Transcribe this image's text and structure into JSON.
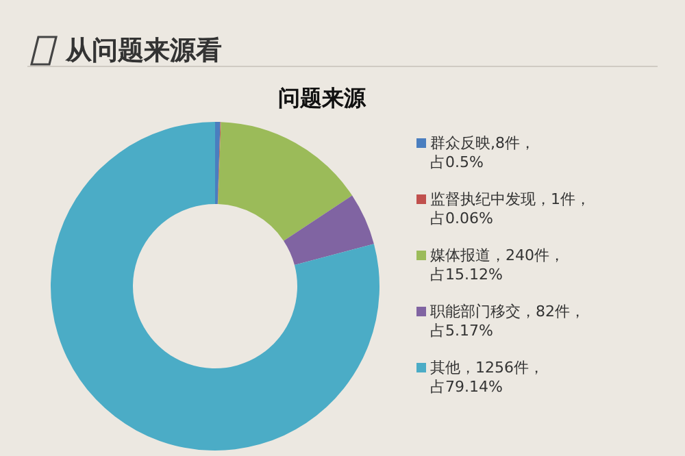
{
  "chart_data": {
    "type": "donut",
    "title": "从问题来源看",
    "subtitle": "问题来源",
    "categories": [
      "群众反映,8件，占0.5%",
      "监督执纪中发现，1件，占0.06%",
      "媒体报道，240件，占15.12%",
      "职能部门移交，82件，占5.17%",
      "其他，1256件，占79.14%"
    ],
    "values": [
      8,
      1,
      240,
      82,
      1256
    ],
    "colors": [
      "#4a7ebf",
      "#c0504d",
      "#9bbb59",
      "#8064a2",
      "#4bacc6"
    ],
    "legend": "right"
  }
}
